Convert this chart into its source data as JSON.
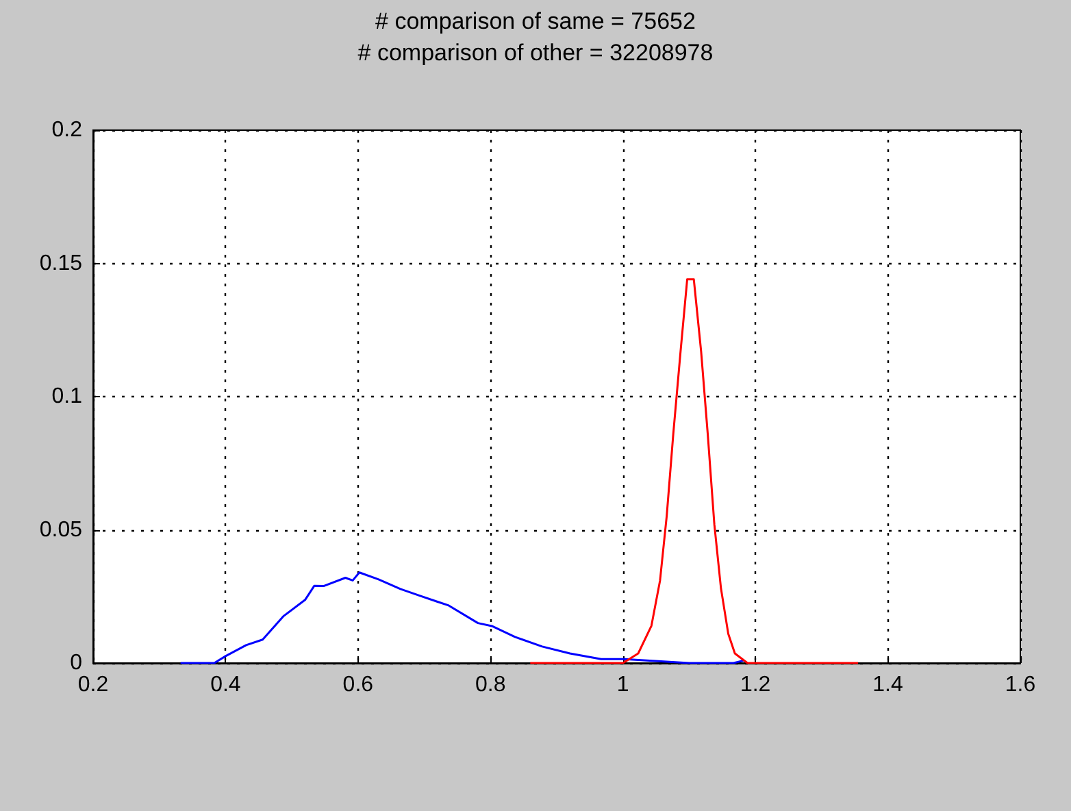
{
  "chart_data": {
    "type": "line",
    "title": "# comparison of same = 75652",
    "subtitle": "# comparison of other = 32208978",
    "series": [
      {
        "color": "#0000ff",
        "x": [
          0.332,
          0.383,
          0.4,
          0.431,
          0.456,
          0.487,
          0.52,
          0.534,
          0.548,
          0.581,
          0.592,
          0.602,
          0.631,
          0.664,
          0.693,
          0.72,
          0.736,
          0.781,
          0.802,
          0.837,
          0.878,
          0.92,
          0.967,
          1.002,
          1.1,
          1.167,
          1.183
        ],
        "values": [
          0,
          0,
          0.0026,
          0.0067,
          0.0088,
          0.0175,
          0.0237,
          0.029,
          0.0289,
          0.032,
          0.031,
          0.034,
          0.0314,
          0.0278,
          0.0253,
          0.023,
          0.0217,
          0.015,
          0.0139,
          0.0098,
          0.0062,
          0.0036,
          0.0015,
          0.0015,
          0,
          0,
          0.001
        ]
      },
      {
        "color": "#ff0000",
        "x": [
          0.86,
          1.0,
          1.023,
          1.043,
          1.056,
          1.066,
          1.076,
          1.087,
          1.097,
          1.107,
          1.118,
          1.128,
          1.138,
          1.148,
          1.159,
          1.169,
          1.188,
          1.355
        ],
        "values": [
          0,
          0,
          0.0036,
          0.014,
          0.031,
          0.055,
          0.086,
          0.117,
          0.144,
          0.144,
          0.117,
          0.086,
          0.052,
          0.028,
          0.011,
          0.0036,
          0,
          0
        ]
      }
    ],
    "xlim": [
      0.2,
      1.6
    ],
    "xticks": [
      0.2,
      0.4,
      0.6,
      0.8,
      1,
      1.2,
      1.4,
      1.6
    ],
    "ylim": [
      0,
      0.2
    ],
    "yticks": [
      0,
      0.05,
      0.1,
      0.15,
      0.2
    ],
    "grid": true,
    "marker": "none",
    "line_style": "solid"
  }
}
